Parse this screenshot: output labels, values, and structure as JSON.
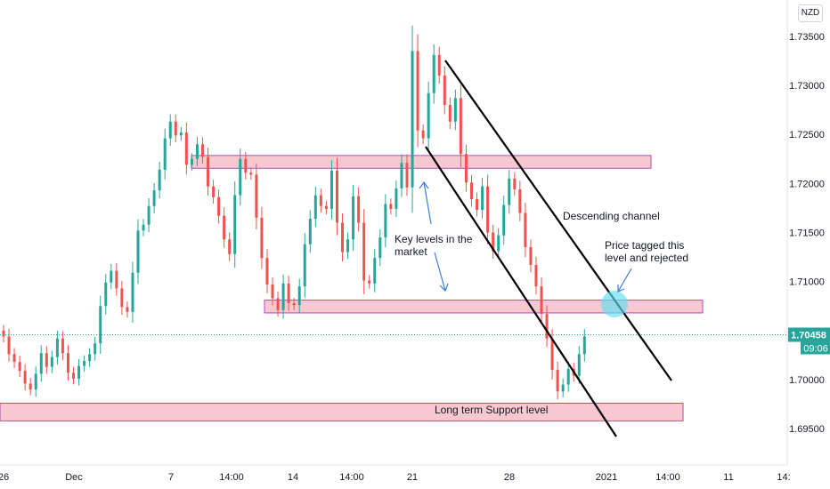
{
  "currency": "NZD",
  "chart_data": {
    "type": "candlestick",
    "y_ticks": [
      "1.73500",
      "1.73000",
      "1.72500",
      "1.72000",
      "1.71500",
      "1.71000",
      "1.70500",
      "1.70000",
      "1.69500"
    ],
    "y_tick_values": [
      1.735,
      1.73,
      1.725,
      1.72,
      1.715,
      1.71,
      1.705,
      1.7,
      1.695
    ],
    "ylim": [
      1.6913,
      1.7387
    ],
    "x_ticks": [
      "26",
      "Dec",
      "7",
      "14:00",
      "14",
      "14:00",
      "21",
      "28",
      "2021",
      "14:00",
      "11",
      "14:"
    ],
    "current_price": {
      "label": "1.70458",
      "value": 1.70458,
      "countdown": "09:06",
      "color": "#26a69a"
    },
    "up_color": "#26a69a",
    "down_color": "#ef5350",
    "zone_fill": "#f8c8d0",
    "zone_border": "#9c27b0",
    "zones": [
      {
        "name": "resistance",
        "from": 1.72155,
        "to": 1.72285
      },
      {
        "name": "key",
        "from": 1.7068,
        "to": 1.7081
      },
      {
        "name": "support",
        "from": 1.6958,
        "to": 1.6976
      }
    ],
    "channel_label": "Descending channel",
    "annotations": {
      "key_levels": [
        "Key levels in the",
        "market"
      ],
      "tagged": [
        "Price tagged this",
        "level and rejected"
      ],
      "support": "Long term Support level"
    },
    "candles": [
      [
        1.705,
        1.7044
      ],
      [
        1.7044,
        1.7026
      ],
      [
        1.7026,
        1.7018
      ],
      [
        1.7018,
        1.7009
      ],
      [
        1.7009,
        1.6996
      ],
      [
        1.6996,
        1.699
      ],
      [
        1.699,
        1.7006
      ],
      [
        1.7006,
        1.7027
      ],
      [
        1.7027,
        1.7013
      ],
      [
        1.7013,
        1.7023
      ],
      [
        1.7023,
        1.7042
      ],
      [
        1.7042,
        1.7027
      ],
      [
        1.7027,
        1.7007
      ],
      [
        1.7007,
        1.7001
      ],
      [
        1.7001,
        1.7014
      ],
      [
        1.7014,
        1.7019
      ],
      [
        1.7019,
        1.7026
      ],
      [
        1.7026,
        1.7037
      ],
      [
        1.7037,
        1.7075
      ],
      [
        1.7075,
        1.7099
      ],
      [
        1.7099,
        1.7111
      ],
      [
        1.7111,
        1.7093
      ],
      [
        1.7093,
        1.7074
      ],
      [
        1.7074,
        1.7069
      ],
      [
        1.7069,
        1.7109
      ],
      [
        1.7109,
        1.7152
      ],
      [
        1.7152,
        1.7158
      ],
      [
        1.7158,
        1.7177
      ],
      [
        1.7177,
        1.7193
      ],
      [
        1.7193,
        1.7214
      ],
      [
        1.7214,
        1.7246
      ],
      [
        1.7246,
        1.7263
      ],
      [
        1.7263,
        1.7249
      ],
      [
        1.7249,
        1.7252
      ],
      [
        1.7252,
        1.7219
      ],
      [
        1.7219,
        1.7225
      ],
      [
        1.7225,
        1.724
      ],
      [
        1.724,
        1.7227
      ],
      [
        1.7227,
        1.7197
      ],
      [
        1.7197,
        1.7186
      ],
      [
        1.7186,
        1.7167
      ],
      [
        1.7167,
        1.7143
      ],
      [
        1.7143,
        1.7128
      ],
      [
        1.7128,
        1.7188
      ],
      [
        1.7188,
        1.7225
      ],
      [
        1.7225,
        1.7211
      ],
      [
        1.7211,
        1.7209
      ],
      [
        1.7209,
        1.7165
      ],
      [
        1.7165,
        1.7124
      ],
      [
        1.7124,
        1.7097
      ],
      [
        1.7097,
        1.7083
      ],
      [
        1.7083,
        1.7071
      ],
      [
        1.7071,
        1.7098
      ],
      [
        1.7098,
        1.7078
      ],
      [
        1.7078,
        1.7076
      ],
      [
        1.7076,
        1.7095
      ],
      [
        1.7095,
        1.7138
      ],
      [
        1.7138,
        1.7164
      ],
      [
        1.7164,
        1.7188
      ],
      [
        1.7188,
        1.7177
      ],
      [
        1.7177,
        1.7174
      ],
      [
        1.7174,
        1.7213
      ],
      [
        1.7213,
        1.716
      ],
      [
        1.716,
        1.713
      ],
      [
        1.713,
        1.7143
      ],
      [
        1.7143,
        1.7187
      ],
      [
        1.7187,
        1.716
      ],
      [
        1.716,
        1.7101
      ],
      [
        1.7101,
        1.7098
      ],
      [
        1.7098,
        1.7124
      ],
      [
        1.7124,
        1.7145
      ],
      [
        1.7145,
        1.7179
      ],
      [
        1.7179,
        1.7174
      ],
      [
        1.7174,
        1.7195
      ],
      [
        1.7195,
        1.7221
      ],
      [
        1.7221,
        1.7196
      ],
      [
        1.7196,
        1.7335
      ],
      [
        1.7335,
        1.7254
      ],
      [
        1.7254,
        1.7246
      ],
      [
        1.7246,
        1.7292
      ],
      [
        1.7292,
        1.7331
      ],
      [
        1.7331,
        1.731
      ],
      [
        1.731,
        1.728
      ],
      [
        1.728,
        1.7263
      ],
      [
        1.7263,
        1.7287
      ],
      [
        1.7287,
        1.723
      ],
      [
        1.723,
        1.7201
      ],
      [
        1.7201,
        1.7184
      ],
      [
        1.7184,
        1.7173
      ],
      [
        1.7173,
        1.7197
      ],
      [
        1.7197,
        1.715
      ],
      [
        1.715,
        1.7131
      ],
      [
        1.7131,
        1.7147
      ],
      [
        1.7147,
        1.7178
      ],
      [
        1.7178,
        1.7205
      ],
      [
        1.7205,
        1.7194
      ],
      [
        1.7194,
        1.717
      ],
      [
        1.717,
        1.7135
      ],
      [
        1.7135,
        1.7117
      ],
      [
        1.7117,
        1.7095
      ],
      [
        1.7095,
        1.7067
      ],
      [
        1.7067,
        1.7042
      ],
      [
        1.7042,
        1.701
      ],
      [
        1.701,
        1.6988
      ],
      [
        1.6988,
        1.6995
      ],
      [
        1.6995,
        1.7011
      ],
      [
        1.7011,
        1.7004
      ],
      [
        1.7004,
        1.7026
      ],
      [
        1.7026,
        1.7044
      ]
    ]
  }
}
